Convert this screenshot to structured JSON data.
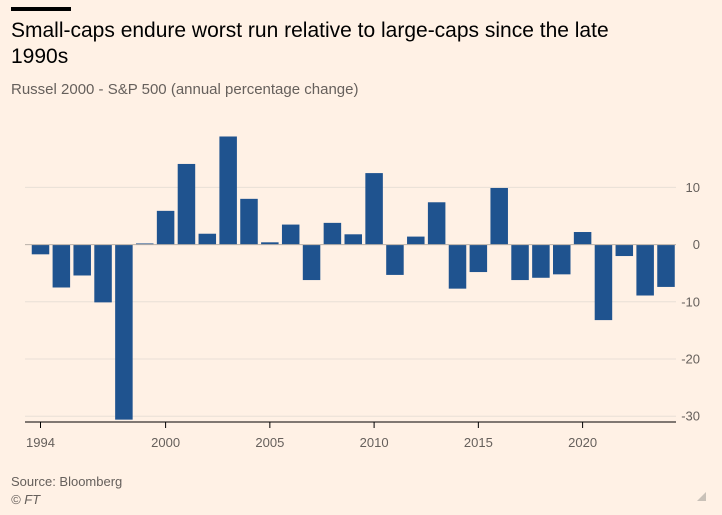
{
  "title": "Small-caps endure worst run relative to large-caps since the late 1990s",
  "subtitle": "Russel 2000 - S&P 500 (annual percentage change)",
  "source": "Source: Bloomberg",
  "copyright": "© FT",
  "colors": {
    "bar": "#1f538f",
    "grid": "#e8dfd6",
    "zero": "#b9b1a9",
    "axis_text": "#66605c",
    "background": "#fff1e5"
  },
  "chart_data": {
    "type": "bar",
    "title": "Small-caps endure worst run relative to large-caps since the late 1990s",
    "ylabel": "Russel 2000 - S&P 500 (annual percentage change)",
    "categories": [
      1994,
      1995,
      1996,
      1997,
      1998,
      1999,
      2000,
      2001,
      2002,
      2003,
      2004,
      2005,
      2006,
      2007,
      2008,
      2009,
      2010,
      2011,
      2012,
      2013,
      2014,
      2015,
      2016,
      2017,
      2018,
      2019,
      2020,
      2021,
      2022,
      2023,
      2024
    ],
    "values": [
      -1.7,
      -7.5,
      -5.4,
      -10.1,
      -30.6,
      0.2,
      5.9,
      14.1,
      1.9,
      18.9,
      8.0,
      0.4,
      3.5,
      -6.2,
      3.8,
      1.8,
      12.5,
      -5.3,
      1.4,
      7.4,
      -7.7,
      -4.8,
      9.9,
      -6.2,
      -5.8,
      -5.2,
      2.2,
      -13.2,
      -2.0,
      -8.9,
      -7.4
    ],
    "x_ticks": [
      "1994",
      "2000",
      "2005",
      "2010",
      "2015",
      "2020"
    ],
    "y_ticks": [
      "10",
      "0",
      "-10",
      "-20",
      "-30"
    ],
    "ylim": [
      -30,
      20
    ],
    "grid": true,
    "y_axis_side": "right"
  }
}
